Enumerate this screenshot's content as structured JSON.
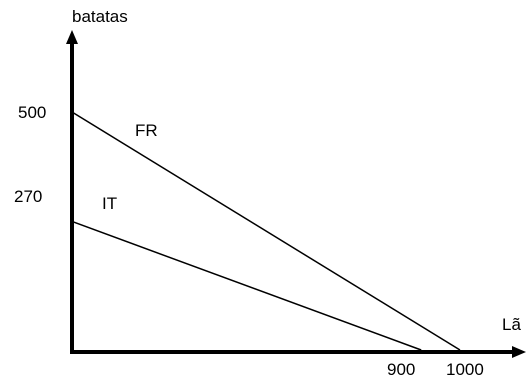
{
  "chart_data": {
    "type": "line",
    "xlabel": "Lã",
    "ylabel": "batatas",
    "y_ticks": [
      {
        "value": 500,
        "label": "500"
      },
      {
        "value": 270,
        "label": "270"
      }
    ],
    "x_ticks": [
      {
        "value": 900,
        "label": "900"
      },
      {
        "value": 1000,
        "label": "1000"
      }
    ],
    "series": [
      {
        "name": "FR",
        "points": [
          [
            0,
            500
          ],
          [
            1000,
            0
          ]
        ],
        "color": "#000000"
      },
      {
        "name": "IT",
        "points": [
          [
            0,
            270
          ],
          [
            900,
            0
          ]
        ],
        "color": "#000000"
      }
    ],
    "grid": false,
    "legend": "inline"
  }
}
